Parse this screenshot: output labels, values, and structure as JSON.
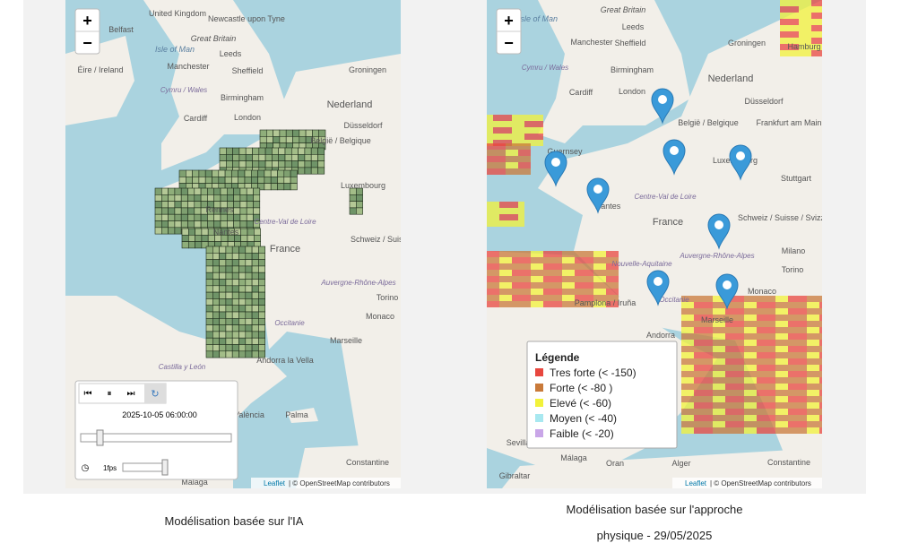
{
  "left_map": {
    "zoom_in": "+",
    "zoom_out": "−",
    "labels": [
      "United Kingdom",
      "Newcastle upon Tyne",
      "Belfast",
      "Great Britain",
      "Isle of Man",
      "Leeds",
      "Éire / Ireland",
      "Manchester",
      "Sheffield",
      "Cymru / Wales",
      "Birmingham",
      "Cardiff",
      "London",
      "Groningen",
      "Nederland",
      "Düsseldorf",
      "België / Belgique",
      "Luxembourg",
      "Rennes",
      "Nantes",
      "Centre-Val de Loire",
      "France",
      "Schweiz / Suisse",
      "Auvergne-Rhône-Alpes",
      "Torino",
      "Occitanie",
      "Monaco",
      "Marseille",
      "Andorra la Vella",
      "Castilla y León",
      "València",
      "Palma",
      "Constantine",
      "Málaga"
    ],
    "player": {
      "timestamp": "2025-10-05 06:00:00",
      "fps": "1fps"
    },
    "attribution": {
      "leaflet": "Leaflet",
      "text": "| © OpenStreetMap contributors"
    }
  },
  "left_caption": "Modélisation basée sur l'IA",
  "right_map": {
    "zoom_in": "+",
    "zoom_out": "−",
    "labels": [
      "Isle of Man",
      "Great Britain",
      "Leeds",
      "Manchester",
      "Sheffield",
      "Cymru / Wales",
      "Birmingham",
      "Cardiff",
      "London",
      "Groningen",
      "Hamburg",
      "Nederland",
      "Düsseldorf",
      "België / Belgique",
      "Frankfurt am Main",
      "Guernsey",
      "Luxembourg",
      "Stuttgart",
      "Nantes",
      "Centre-Val de Loire",
      "France",
      "Schweiz / Suisse / Svizzera",
      "Milano",
      "Torino",
      "Auvergne-Rhône-Alpes",
      "Nouvelle-Aquitaine",
      "Occitanie",
      "Pamplona / Iruña",
      "Monaco",
      "Marseille",
      "Andorra",
      "Sevilla",
      "Málaga",
      "Gibraltar",
      "Oran",
      "Alger",
      "Constantine"
    ],
    "legend": {
      "title": "Légende",
      "items": [
        {
          "label": "Tres forte (< -150)",
          "color": "#e8473f"
        },
        {
          "label": "Forte (< -80 )",
          "color": "#c97a3a"
        },
        {
          "label": "Elevé (< -60)",
          "color": "#f2f23a"
        },
        {
          "label": "Moyen (< -40)",
          "color": "#a8e8f0"
        },
        {
          "label": "Faible (< -20)",
          "color": "#c9a6e8"
        }
      ]
    },
    "attribution": {
      "leaflet": "Leaflet",
      "text": "| © OpenStreetMap contributors"
    }
  },
  "right_caption": [
    "Modélisation basée sur l'approche",
    "physique - 29/05/2025"
  ]
}
